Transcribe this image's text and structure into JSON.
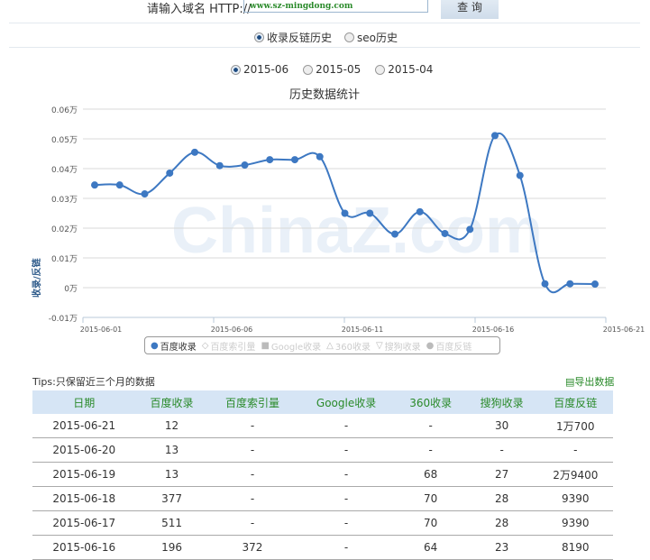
{
  "search": {
    "label": "请输入域名 HTTP://",
    "value": "www.sz-mingdong.com",
    "button": "查 询"
  },
  "mode_radios": [
    {
      "label": "收录反链历史",
      "checked": true
    },
    {
      "label": "seo历史",
      "checked": false
    }
  ],
  "month_radios": [
    {
      "label": "2015-06",
      "checked": true
    },
    {
      "label": "2015-05",
      "checked": false
    },
    {
      "label": "2015-04",
      "checked": false
    }
  ],
  "watermark": "ChinaZ.com",
  "chart_data": {
    "type": "line",
    "title": "历史数据统计",
    "ylabel": "收录/反链",
    "ylim": [
      -0.01,
      0.06
    ],
    "yunit": "万",
    "yticks": [
      "0.06万",
      "0.05万",
      "0.04万",
      "0.03万",
      "0.02万",
      "0.01万",
      "0万",
      "-0.01万"
    ],
    "xticks": [
      "2015-06-01",
      "2015-06-06",
      "2015-06-11",
      "2015-06-16",
      "2015-06-21"
    ],
    "x": [
      "2015-06-01",
      "2015-06-02",
      "2015-06-03",
      "2015-06-04",
      "2015-06-05",
      "2015-06-06",
      "2015-06-07",
      "2015-06-08",
      "2015-06-09",
      "2015-06-10",
      "2015-06-11",
      "2015-06-12",
      "2015-06-13",
      "2015-06-14",
      "2015-06-15",
      "2015-06-16",
      "2015-06-17",
      "2015-06-18",
      "2015-06-19",
      "2015-06-20",
      "2015-06-21"
    ],
    "series": [
      {
        "name": "百度收录",
        "color": "#3d78c2",
        "values": [
          0.0345,
          0.0345,
          0.0315,
          0.0385,
          0.0455,
          0.041,
          0.0412,
          0.043,
          0.043,
          0.044,
          0.025,
          0.025,
          0.018,
          0.0255,
          0.0182,
          0.0196,
          0.0511,
          0.0377,
          0.0013,
          0.0013,
          0.0012
        ]
      }
    ],
    "legend": [
      {
        "label": "百度收录",
        "active": true,
        "marker": "●"
      },
      {
        "label": "百度索引量",
        "active": false,
        "marker": "◇"
      },
      {
        "label": "Google收录",
        "active": false,
        "marker": "■"
      },
      {
        "label": "360收录",
        "active": false,
        "marker": "△"
      },
      {
        "label": "搜狗收录",
        "active": false,
        "marker": "▽"
      },
      {
        "label": "百度反链",
        "active": false,
        "marker": "●"
      }
    ],
    "legend_position": "bottom",
    "grid": true
  },
  "tips": "Tips:只保留近三个月的数据",
  "export": "导出数据",
  "table": {
    "headers": [
      "日期",
      "百度收录",
      "百度索引量",
      "Google收录",
      "360收录",
      "搜狗收录",
      "百度反链"
    ],
    "rows": [
      [
        "2015-06-21",
        "12",
        "-",
        "-",
        "-",
        "30",
        "1万700"
      ],
      [
        "2015-06-20",
        "13",
        "-",
        "-",
        "-",
        "-",
        "-"
      ],
      [
        "2015-06-19",
        "13",
        "-",
        "-",
        "68",
        "27",
        "2万9400"
      ],
      [
        "2015-06-18",
        "377",
        "-",
        "-",
        "70",
        "28",
        "9390"
      ],
      [
        "2015-06-17",
        "511",
        "-",
        "-",
        "70",
        "28",
        "9390"
      ],
      [
        "2015-06-16",
        "196",
        "372",
        "-",
        "64",
        "23",
        "8190"
      ]
    ]
  }
}
